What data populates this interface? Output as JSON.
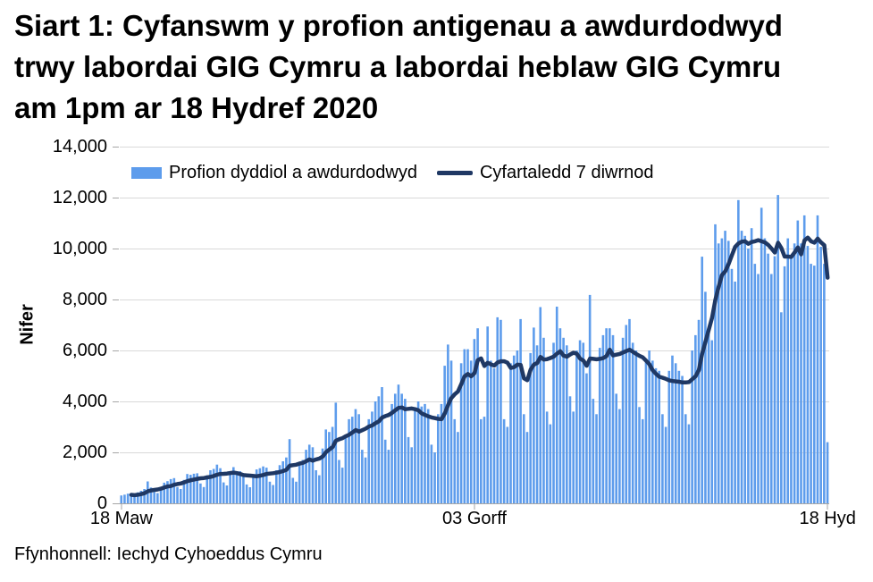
{
  "title_lines": [
    "Siart 1: Cyfanswm y profion antigenau a awdurdodwyd",
    "trwy labordai GIG Cymru a labordai heblaw GIG Cymru",
    "am 1pm ar 18 Hydref 2020"
  ],
  "legend": {
    "bars_label": "Profion dyddiol a awdurdodwyd",
    "line_label": "Cyfartaledd 7 diwrnod"
  },
  "y_axis": {
    "label": "Nifer",
    "tick_labels": [
      "0",
      "2,000",
      "4,000",
      "6,000",
      "8,000",
      "10,000",
      "12,000",
      "14,000"
    ]
  },
  "x_axis": {
    "ticks": [
      {
        "label": "18 Maw",
        "day_index": 0
      },
      {
        "label": "03 Gorff",
        "day_index": 107
      },
      {
        "label": "18 Hyd",
        "day_index": 214
      }
    ]
  },
  "source": "Ffynhonnell: Iechyd Cyhoeddus Cymru",
  "colors": {
    "bar": "#5D9CEC",
    "line": "#1F3864",
    "grid": "#D9D9D9",
    "axis": "#A6A6A6",
    "text": "#000000"
  },
  "chart_data": {
    "type": "bar",
    "title": "Siart 1: Cyfanswm y profion antigenau a awdurdodwyd trwy labordai GIG Cymru a labordai heblaw GIG Cymru am 1pm ar 18 Hydref 2020",
    "xlabel": "",
    "ylabel": "Nifer",
    "ylim": [
      0,
      14000
    ],
    "y_tick_step": 2000,
    "grid": "horizontal",
    "legend_position": "top-inside",
    "x": {
      "start_date": "2020-03-18",
      "end_date": "2020-10-18",
      "n_days": 215
    },
    "series": [
      {
        "name": "Profion dyddiol a awdurdodwyd",
        "type": "bar",
        "values": [
          310,
          340,
          380,
          300,
          270,
          430,
          490,
          560,
          860,
          620,
          450,
          400,
          640,
          810,
          870,
          950,
          990,
          640,
          560,
          920,
          1150,
          1120,
          1160,
          1180,
          780,
          640,
          1100,
          1300,
          1350,
          1520,
          1380,
          820,
          700,
          1250,
          1420,
          1220,
          1260,
          1100,
          740,
          630,
          1150,
          1330,
          1380,
          1450,
          1400,
          850,
          720,
          1300,
          1500,
          1650,
          1800,
          2520,
          1000,
          850,
          1600,
          1700,
          2100,
          2300,
          2200,
          1300,
          1100,
          2150,
          2900,
          2800,
          3000,
          3950,
          1700,
          1400,
          2700,
          3300,
          3400,
          3700,
          3500,
          2100,
          1800,
          3300,
          3600,
          4000,
          4200,
          4560,
          2500,
          2100,
          3900,
          4300,
          4660,
          4300,
          4100,
          2600,
          2200,
          3700,
          4000,
          3800,
          3900,
          3700,
          2300,
          2000,
          3500,
          3900,
          5400,
          6230,
          5600,
          3300,
          2800,
          5500,
          6050,
          6050,
          5600,
          6450,
          6870,
          3300,
          3400,
          6940,
          5600,
          5300,
          7300,
          7200,
          3300,
          3000,
          5500,
          5800,
          6000,
          7230,
          3500,
          2800,
          5900,
          6900,
          6200,
          7700,
          6500,
          3600,
          3100,
          6300,
          7720,
          6870,
          6500,
          6200,
          4200,
          3600,
          6000,
          6400,
          6300,
          5100,
          8180,
          4100,
          3500,
          6100,
          6600,
          6870,
          6870,
          6600,
          4300,
          3700,
          6500,
          7000,
          7230,
          6300,
          6000,
          3780,
          3300,
          5600,
          6000,
          5600,
          5300,
          5200,
          3500,
          3000,
          5200,
          5800,
          5500,
          5200,
          5000,
          3500,
          3100,
          6000,
          6600,
          7200,
          9680,
          8300,
          6800,
          6400,
          10950,
          10200,
          10400,
          10700,
          10300,
          9200,
          8700,
          11900,
          10700,
          10500,
          10000,
          10800,
          9400,
          9000,
          11600,
          10400,
          9800,
          9000,
          9700,
          12100,
          7500,
          9300,
          10400,
          9700,
          10200,
          11100,
          10200,
          11300,
          10100,
          9400,
          9330,
          11300,
          10070,
          9400,
          2400
        ]
      },
      {
        "name": "Cyfartaledd 7 diwrnod",
        "type": "line",
        "derived_from": "7-day rolling average of daily authorised tests",
        "window": 7
      }
    ]
  }
}
